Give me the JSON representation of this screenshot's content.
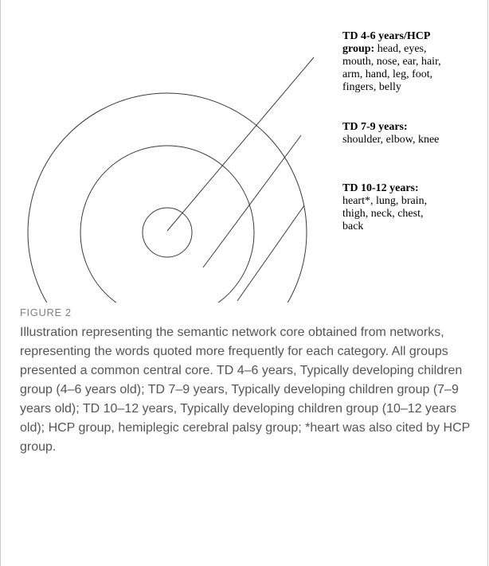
{
  "labels": [
    {
      "title": "TD 4-6 years/HCP",
      "title2": "group:",
      "text": "head, eyes,",
      "rest": [
        "mouth, nose, ear, hair,",
        "arm, hand, leg, foot,",
        "fingers, belly"
      ]
    },
    {
      "title": "TD 7-9 years:",
      "lines": [
        "shoulder, elbow, knee"
      ]
    },
    {
      "title": "TD 10-12 years:",
      "lines": [
        "heart*, lung, brain,",
        "thigh, neck, chest,",
        "back"
      ]
    }
  ],
  "caption": {
    "heading": "FIGURE 2",
    "text": "Illustration representing the semantic network core obtained from networks, representing the words quoted more frequently for each category. All groups presented a common central core. TD 4–6 years, Typically developing children group (4–6 years old); TD 7–9 years, Typically developing children group (7–9 years old); TD 10–12 years, Typically developing children group (10–12 years old); HCP group, hemiplegic cerebral palsy group; *heart was also cited by HCP group."
  }
}
